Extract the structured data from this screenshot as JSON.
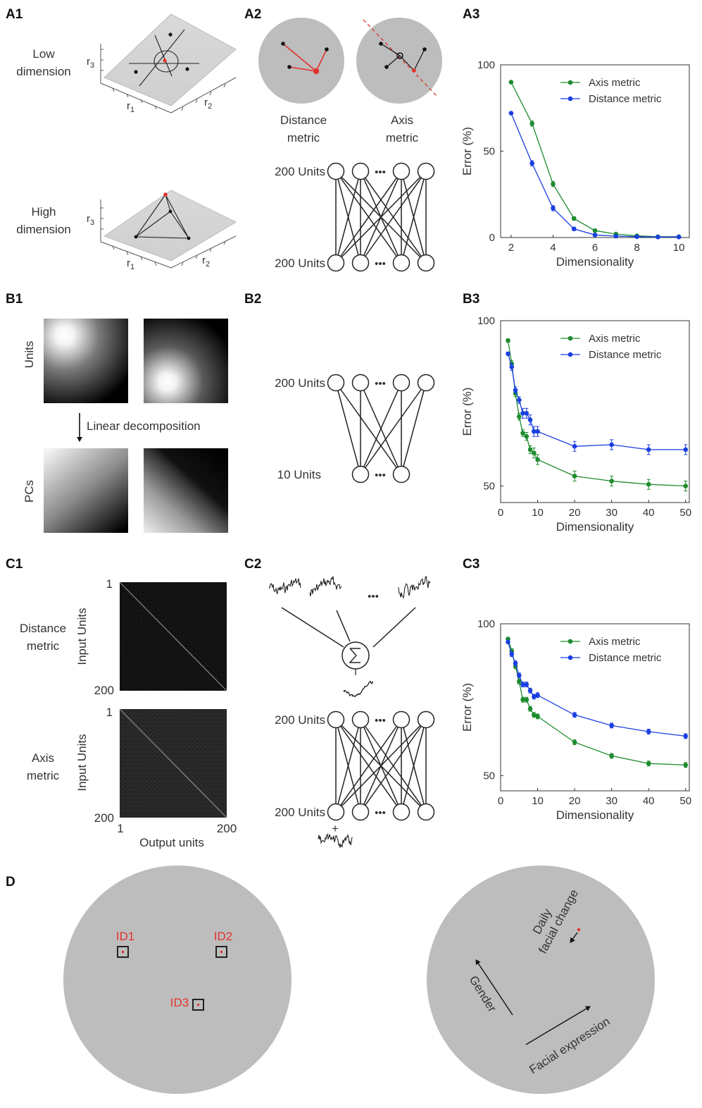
{
  "panels": {
    "A1": "A1",
    "A2": "A2",
    "A3": "A3",
    "B1": "B1",
    "B2": "B2",
    "B3": "B3",
    "C1": "C1",
    "C2": "C2",
    "C3": "C3",
    "D": "D"
  },
  "A1": {
    "low_line1": "Low",
    "low_line2": "dimension",
    "high_line1": "High",
    "high_line2": "dimension",
    "r1": "r",
    "r2": "r",
    "r3": "r",
    "sub1": "1",
    "sub2": "2",
    "sub3": "3"
  },
  "A2": {
    "distance_line1": "Distance",
    "distance_line2": "metric",
    "axis_line1": "Axis",
    "axis_line2": "metric",
    "top_units": "200 Units",
    "bottom_units": "200 Units",
    "ellipsis": "•••"
  },
  "B1": {
    "units_label": "Units",
    "pcs_label": "PCs",
    "decomposition": "Linear decomposition"
  },
  "B2": {
    "top_units": "200 Units",
    "bottom_units": "10 Units",
    "ellipsis": "•••"
  },
  "C1": {
    "distance_line1": "Distance",
    "distance_line2": "metric",
    "axis_line1": "Axis",
    "axis_line2": "metric",
    "input_units": "Input Units",
    "output_units": "Output units",
    "tick_1": "1",
    "tick_200": "200"
  },
  "C2": {
    "top_units": "200 Units",
    "bottom_units": "200 Units",
    "ellipsis": "•••",
    "plus": "+"
  },
  "D": {
    "id1": "ID1",
    "id2": "ID2",
    "id3": "ID3",
    "daily1": "Daily",
    "daily2": "facial change",
    "gender": "Gender",
    "expression": "Facial expression"
  },
  "colors": {
    "axis": "#1e8c2e",
    "distance": "#1a3fe0",
    "red": "#e4312b",
    "disk": "#bdbdbd"
  },
  "chart_data": [
    {
      "id": "A3",
      "type": "line",
      "xlabel": "Dimensionality",
      "ylabel": "Error (%)",
      "xlim": [
        1.5,
        10.5
      ],
      "ylim": [
        0,
        100
      ],
      "xticks": [
        2,
        4,
        6,
        8,
        10
      ],
      "yticks": [
        0,
        50,
        100
      ],
      "legend": "top-right",
      "series": [
        {
          "name": "Axis metric",
          "color": "#1e8c2e",
          "x": [
            2,
            3,
            4,
            5,
            6,
            7,
            8,
            9,
            10
          ],
          "y": [
            90,
            66,
            31,
            11,
            4,
            2,
            1,
            0.5,
            0.5
          ],
          "err": [
            0.6,
            1.5,
            1.5,
            1,
            0.6,
            0.5,
            0.5,
            0.5,
            0.5
          ]
        },
        {
          "name": "Distance metric",
          "color": "#1a3fe0",
          "x": [
            2,
            3,
            4,
            5,
            6,
            7,
            8,
            9,
            10
          ],
          "y": [
            72,
            43,
            17,
            5,
            1.5,
            0.8,
            0.5,
            0.3,
            0.3
          ],
          "err": [
            0.6,
            1.5,
            1.5,
            1,
            0.5,
            0.5,
            0.3,
            0.3,
            0.3
          ]
        }
      ]
    },
    {
      "id": "B3",
      "type": "line",
      "xlabel": "Dimensionality",
      "ylabel": "Error (%)",
      "xlim": [
        0,
        51
      ],
      "ylim": [
        45,
        100
      ],
      "xticks": [
        0,
        10,
        20,
        30,
        40,
        50
      ],
      "yticks": [
        50,
        100
      ],
      "legend": "top-right",
      "series": [
        {
          "name": "Axis metric",
          "color": "#1e8c2e",
          "x": [
            2,
            3,
            4,
            5,
            6,
            7,
            8,
            9,
            10,
            20,
            30,
            40,
            50
          ],
          "y": [
            94,
            87,
            78,
            71,
            66,
            65,
            61,
            60,
            58,
            53,
            51.5,
            50.5,
            50
          ],
          "err": [
            0.5,
            1,
            1,
            1,
            1,
            1.2,
            1.2,
            1.5,
            1.5,
            1.5,
            1.5,
            1.5,
            1.5
          ]
        },
        {
          "name": "Distance metric",
          "color": "#1a3fe0",
          "x": [
            2,
            3,
            4,
            5,
            6,
            7,
            8,
            9,
            10,
            20,
            30,
            40,
            50
          ],
          "y": [
            90,
            86,
            79,
            76,
            72,
            72,
            70,
            66.5,
            66.5,
            62,
            62.5,
            61,
            61
          ],
          "err": [
            0.5,
            1,
            1,
            1,
            1.5,
            1.5,
            1.5,
            1.5,
            1.5,
            1.5,
            1.5,
            1.5,
            1.5
          ]
        }
      ]
    },
    {
      "id": "C3",
      "type": "line",
      "xlabel": "Dimensionality",
      "ylabel": "Error (%)",
      "xlim": [
        0,
        51
      ],
      "ylim": [
        45,
        100
      ],
      "xticks": [
        0,
        10,
        20,
        30,
        40,
        50
      ],
      "yticks": [
        50,
        100
      ],
      "legend": "top-right",
      "series": [
        {
          "name": "Axis metric",
          "color": "#1e8c2e",
          "x": [
            2,
            3,
            4,
            5,
            6,
            7,
            8,
            9,
            10,
            20,
            30,
            40,
            50
          ],
          "y": [
            95,
            91,
            86,
            81,
            75,
            75,
            72,
            70,
            69.5,
            61,
            56.5,
            54,
            53.5
          ],
          "err": [
            0.5,
            0.8,
            0.8,
            0.8,
            0.8,
            0.8,
            0.8,
            0.8,
            0.8,
            0.8,
            0.8,
            0.8,
            0.8
          ]
        },
        {
          "name": "Distance metric",
          "color": "#1a3fe0",
          "x": [
            2,
            3,
            4,
            5,
            6,
            7,
            8,
            9,
            10,
            20,
            30,
            40,
            50
          ],
          "y": [
            94,
            90,
            87,
            83,
            80,
            80,
            78,
            76,
            76.5,
            70,
            66.5,
            64.5,
            63
          ],
          "err": [
            0.5,
            0.8,
            0.8,
            0.8,
            0.8,
            0.8,
            0.8,
            0.8,
            0.8,
            0.8,
            0.8,
            0.8,
            0.8
          ]
        }
      ]
    }
  ]
}
